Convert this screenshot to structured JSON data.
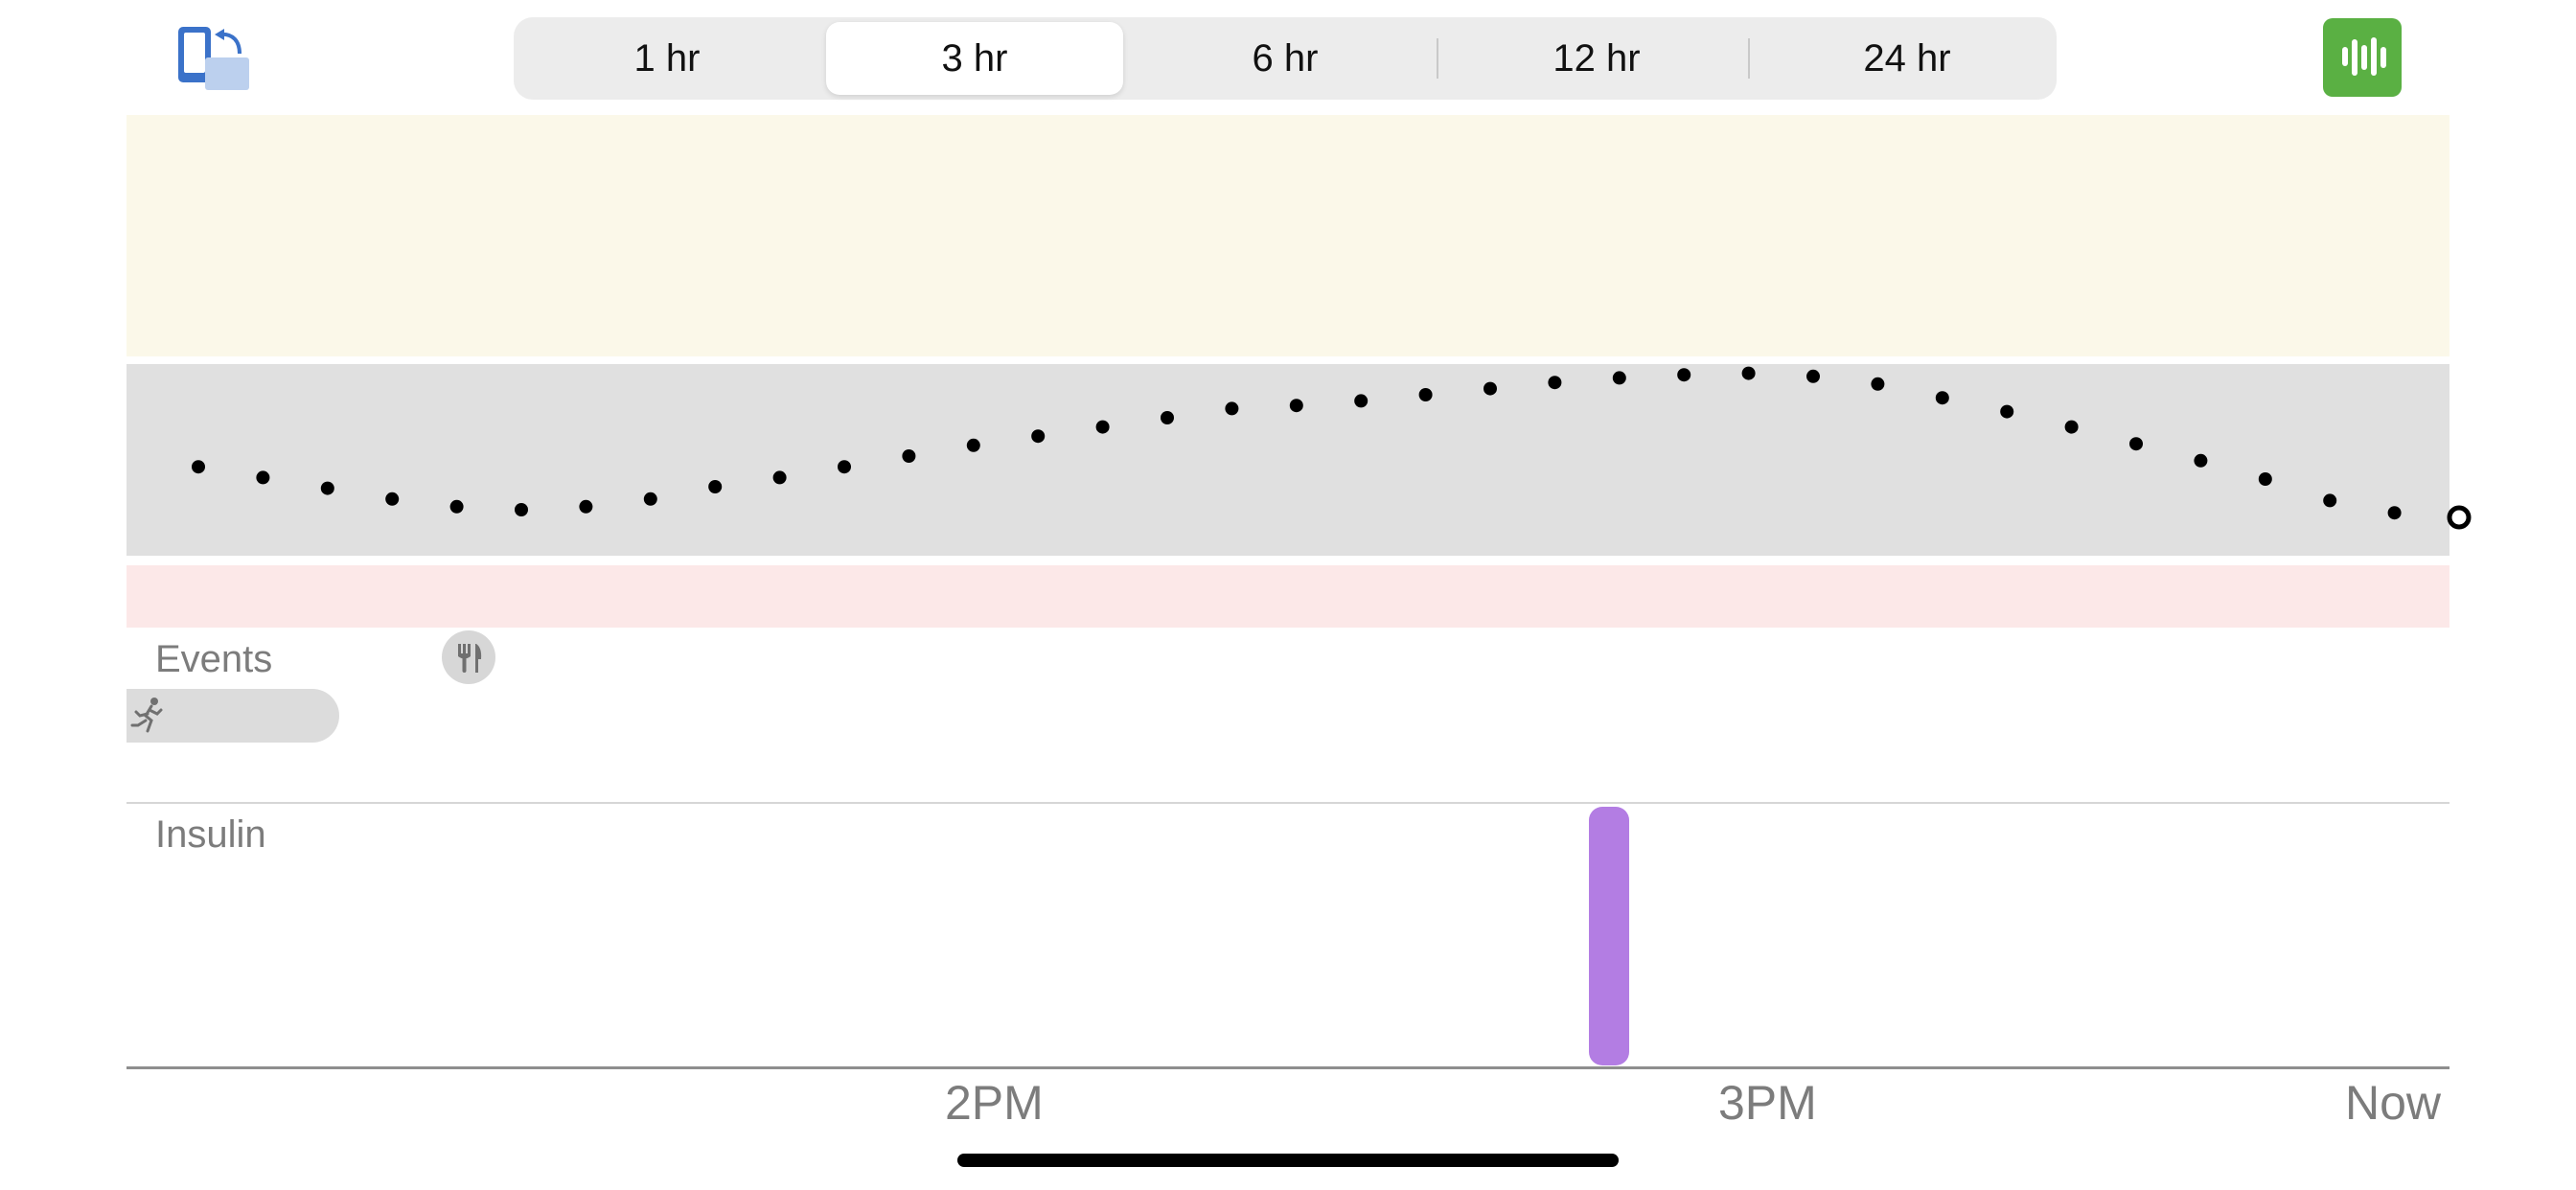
{
  "toolbar": {
    "rotate_icon": "rotate-phone-icon",
    "ranges": [
      "1 hr",
      "3 hr",
      "6 hr",
      "12 hr",
      "24 hr"
    ],
    "selected_range": "3 hr",
    "stats_icon": "bar-chart-icon",
    "stats_color": "#5ab043"
  },
  "colors": {
    "high_band": "#fbf8e9",
    "target_band": "#e0e0e0",
    "low_band": "#fce8e8",
    "insulin": "#b37de3",
    "glucose_dot": "#000000"
  },
  "chart_data": {
    "type": "scatter",
    "x_ticks": [
      "2PM",
      "3PM",
      "Now"
    ],
    "glucose": {
      "interval_minutes": 5,
      "readings": [
        0.58,
        0.51,
        0.44,
        0.37,
        0.32,
        0.3,
        0.32,
        0.37,
        0.45,
        0.51,
        0.58,
        0.65,
        0.72,
        0.78,
        0.84,
        0.9,
        0.96,
        0.98,
        1.01,
        1.05,
        1.09,
        1.13,
        1.16,
        1.18,
        1.19,
        1.17,
        1.12,
        1.03,
        0.94,
        0.84,
        0.73,
        0.62,
        0.5,
        0.36,
        0.28,
        0.25
      ],
      "latest_reading_marker": "hollow"
    },
    "target_range": {
      "low": 0.0,
      "high": 1.25
    },
    "events": [
      {
        "type": "meal",
        "icon": "fork-knife-icon"
      },
      {
        "type": "exercise",
        "icon": "running-person-icon"
      }
    ],
    "insulin": [
      {
        "type": "bolus",
        "relative_size": 1.0
      }
    ]
  },
  "sections": {
    "events_label": "Events",
    "insulin_label": "Insulin"
  }
}
